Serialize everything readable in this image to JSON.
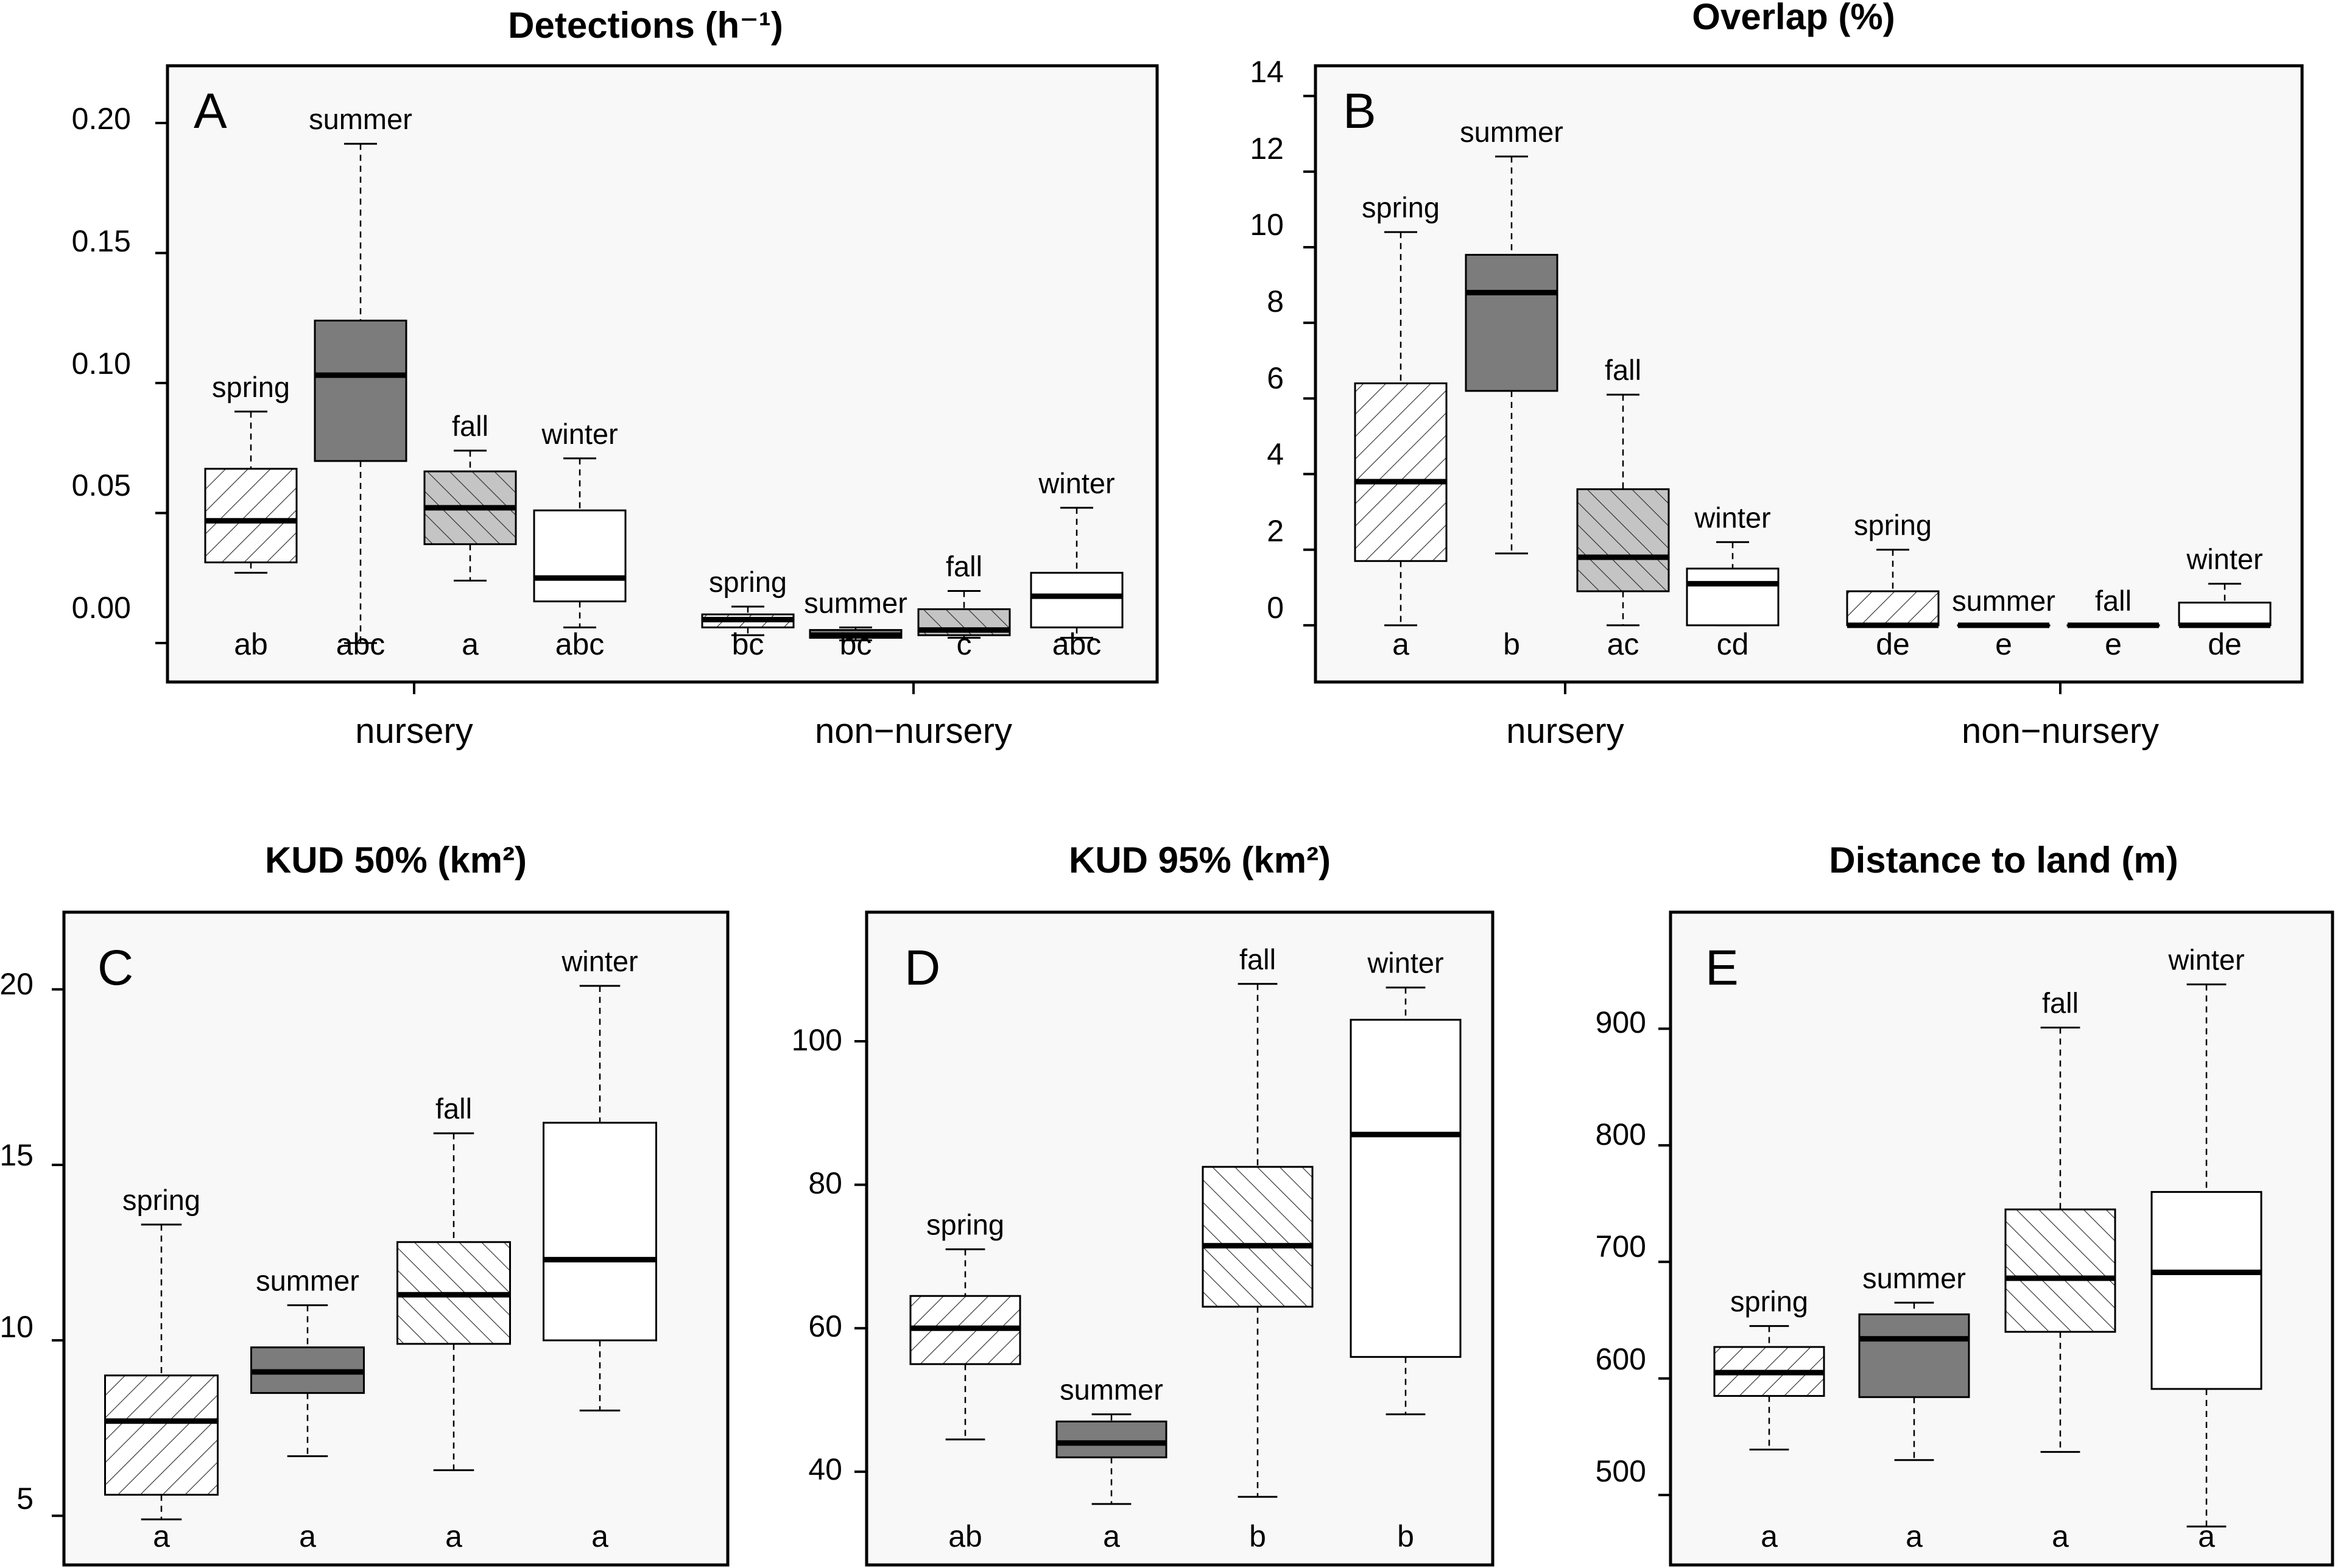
{
  "chart_data": [
    {
      "id": "A",
      "type": "boxplot",
      "title": "Detections (h⁻¹)",
      "panel_letter": "A",
      "yticks": [
        "0.00",
        "0.05",
        "0.10",
        "0.15",
        "0.20"
      ],
      "yticks_values": [
        0,
        0.05,
        0.1,
        0.15,
        0.2
      ],
      "ylim": [
        -0.015,
        0.222
      ],
      "groups": [
        "nursery",
        "non−nursery"
      ],
      "boxes": [
        {
          "label": "spring",
          "group": "nursery",
          "fill": "hatch-right",
          "min": 0.027,
          "q1": 0.031,
          "median": 0.047,
          "q3": 0.067,
          "max": 0.089,
          "letter": "ab"
        },
        {
          "label": "summer",
          "group": "nursery",
          "fill": "dark",
          "min": 0.0,
          "q1": 0.07,
          "median": 0.103,
          "q3": 0.124,
          "max": 0.192,
          "letter": "abc"
        },
        {
          "label": "fall",
          "group": "nursery",
          "fill": "gray-hatch",
          "min": 0.024,
          "q1": 0.038,
          "median": 0.052,
          "q3": 0.066,
          "max": 0.074,
          "letter": "a"
        },
        {
          "label": "winter",
          "group": "nursery",
          "fill": "white",
          "min": 0.006,
          "q1": 0.016,
          "median": 0.025,
          "q3": 0.051,
          "max": 0.071,
          "letter": "abc"
        },
        {
          "label": "spring",
          "group": "non−nursery",
          "fill": "hatch-right",
          "min": 0.003,
          "q1": 0.006,
          "median": 0.009,
          "q3": 0.011,
          "max": 0.014,
          "letter": "bc"
        },
        {
          "label": "summer",
          "group": "non−nursery",
          "fill": "dark",
          "min": 0.001,
          "q1": 0.002,
          "median": 0.003,
          "q3": 0.005,
          "max": 0.006,
          "letter": "bc"
        },
        {
          "label": "fall",
          "group": "non−nursery",
          "fill": "gray-hatch",
          "min": 0.002,
          "q1": 0.003,
          "median": 0.005,
          "q3": 0.013,
          "max": 0.02,
          "letter": "c"
        },
        {
          "label": "winter",
          "group": "non−nursery",
          "fill": "white",
          "min": 0.002,
          "q1": 0.006,
          "median": 0.018,
          "q3": 0.027,
          "max": 0.052,
          "letter": "abc"
        }
      ]
    },
    {
      "id": "B",
      "type": "boxplot",
      "title": "Overlap (%)",
      "panel_letter": "B",
      "yticks": [
        "0",
        "2",
        "4",
        "6",
        "8",
        "10",
        "12",
        "14"
      ],
      "yticks_values": [
        0,
        2,
        4,
        6,
        8,
        10,
        12,
        14
      ],
      "ylim": [
        -1.5,
        14.8
      ],
      "groups": [
        "nursery",
        "non−nursery"
      ],
      "boxes": [
        {
          "label": "spring",
          "group": "nursery",
          "fill": "hatch-right",
          "min": 0.0,
          "q1": 1.7,
          "median": 3.8,
          "q3": 6.4,
          "max": 10.4,
          "letter": "a"
        },
        {
          "label": "summer",
          "group": "nursery",
          "fill": "dark",
          "min": 1.9,
          "q1": 6.2,
          "median": 8.8,
          "q3": 9.8,
          "max": 12.4,
          "letter": "b"
        },
        {
          "label": "fall",
          "group": "nursery",
          "fill": "gray-hatch",
          "min": 0.0,
          "q1": 0.9,
          "median": 1.8,
          "q3": 3.6,
          "max": 6.1,
          "letter": "ac"
        },
        {
          "label": "winter",
          "group": "nursery",
          "fill": "white",
          "min": 0.0,
          "q1": 0.0,
          "median": 1.1,
          "q3": 1.5,
          "max": 2.2,
          "letter": "cd"
        },
        {
          "label": "spring",
          "group": "non−nursery",
          "fill": "hatch-right",
          "min": 0.0,
          "q1": 0.0,
          "median": 0.0,
          "q3": 0.9,
          "max": 2.0,
          "letter": "de"
        },
        {
          "label": "summer",
          "group": "non−nursery",
          "fill": "dark",
          "min": 0.0,
          "q1": 0.0,
          "median": 0.0,
          "q3": 0.0,
          "max": 0.0,
          "letter": "e"
        },
        {
          "label": "fall",
          "group": "non−nursery",
          "fill": "gray-hatch",
          "min": 0.0,
          "q1": 0.0,
          "median": 0.0,
          "q3": 0.0,
          "max": 0.0,
          "letter": "e"
        },
        {
          "label": "winter",
          "group": "non−nursery",
          "fill": "white",
          "min": 0.0,
          "q1": 0.0,
          "median": 0.0,
          "q3": 0.6,
          "max": 1.1,
          "letter": "de"
        }
      ]
    },
    {
      "id": "C",
      "type": "boxplot",
      "title": "KUD 50% (km²)",
      "panel_letter": "C",
      "yticks": [
        "5",
        "10",
        "15",
        "20"
      ],
      "yticks_values": [
        5,
        10,
        15,
        20
      ],
      "ylim": [
        3.6,
        22.2
      ],
      "groups": [],
      "boxes": [
        {
          "label": "spring",
          "fill": "hatch-right",
          "min": 4.9,
          "q1": 5.6,
          "median": 7.7,
          "q3": 9.0,
          "max": 13.3,
          "letter": "a"
        },
        {
          "label": "summer",
          "fill": "dark",
          "min": 6.7,
          "q1": 8.5,
          "median": 9.1,
          "q3": 9.8,
          "max": 11.0,
          "letter": "a"
        },
        {
          "label": "fall",
          "fill": "hatch-left",
          "min": 6.3,
          "q1": 9.9,
          "median": 11.3,
          "q3": 12.8,
          "max": 15.9,
          "letter": "a"
        },
        {
          "label": "winter",
          "fill": "white",
          "min": 8.0,
          "q1": 10.0,
          "median": 12.3,
          "q3": 16.2,
          "max": 20.1,
          "letter": "a"
        }
      ]
    },
    {
      "id": "D",
      "type": "boxplot",
      "title": "KUD 95% (km²)",
      "panel_letter": "D",
      "yticks": [
        "40",
        "60",
        "80",
        "100"
      ],
      "yticks_values": [
        40,
        60,
        80,
        100
      ],
      "ylim": [
        27,
        118
      ],
      "groups": [],
      "boxes": [
        {
          "label": "spring",
          "fill": "hatch-right",
          "min": 44.5,
          "q1": 55.0,
          "median": 60.0,
          "q3": 64.5,
          "max": 71.0,
          "letter": "ab"
        },
        {
          "label": "summer",
          "fill": "dark",
          "min": 35.5,
          "q1": 42.0,
          "median": 44.0,
          "q3": 47.0,
          "max": 48.0,
          "letter": "a"
        },
        {
          "label": "fall",
          "fill": "hatch-left",
          "min": 36.5,
          "q1": 63.0,
          "median": 71.5,
          "q3": 82.5,
          "max": 108.0,
          "letter": "b"
        },
        {
          "label": "winter",
          "fill": "white",
          "min": 48.0,
          "q1": 56.0,
          "median": 87.0,
          "q3": 103.0,
          "max": 107.5,
          "letter": "b"
        }
      ]
    },
    {
      "id": "E",
      "type": "boxplot",
      "title": "Distance to land (m)",
      "panel_letter": "E",
      "yticks": [
        "500",
        "600",
        "700",
        "800",
        "900"
      ],
      "yticks_values": [
        500,
        600,
        700,
        800,
        900
      ],
      "ylim": [
        440,
        1000
      ],
      "groups": [],
      "boxes": [
        {
          "label": "spring",
          "fill": "hatch-right",
          "min": 539,
          "q1": 585,
          "median": 605,
          "q3": 627,
          "max": 645,
          "letter": "a"
        },
        {
          "label": "summer",
          "fill": "dark",
          "min": 530,
          "q1": 584,
          "median": 634,
          "q3": 655,
          "max": 665,
          "letter": "a"
        },
        {
          "label": "fall",
          "fill": "hatch-left",
          "min": 537,
          "q1": 640,
          "median": 686,
          "q3": 745,
          "max": 901,
          "letter": "a"
        },
        {
          "label": "winter",
          "fill": "white",
          "min": 473,
          "q1": 591,
          "median": 691,
          "q3": 760,
          "max": 938,
          "letter": "a"
        }
      ]
    }
  ]
}
